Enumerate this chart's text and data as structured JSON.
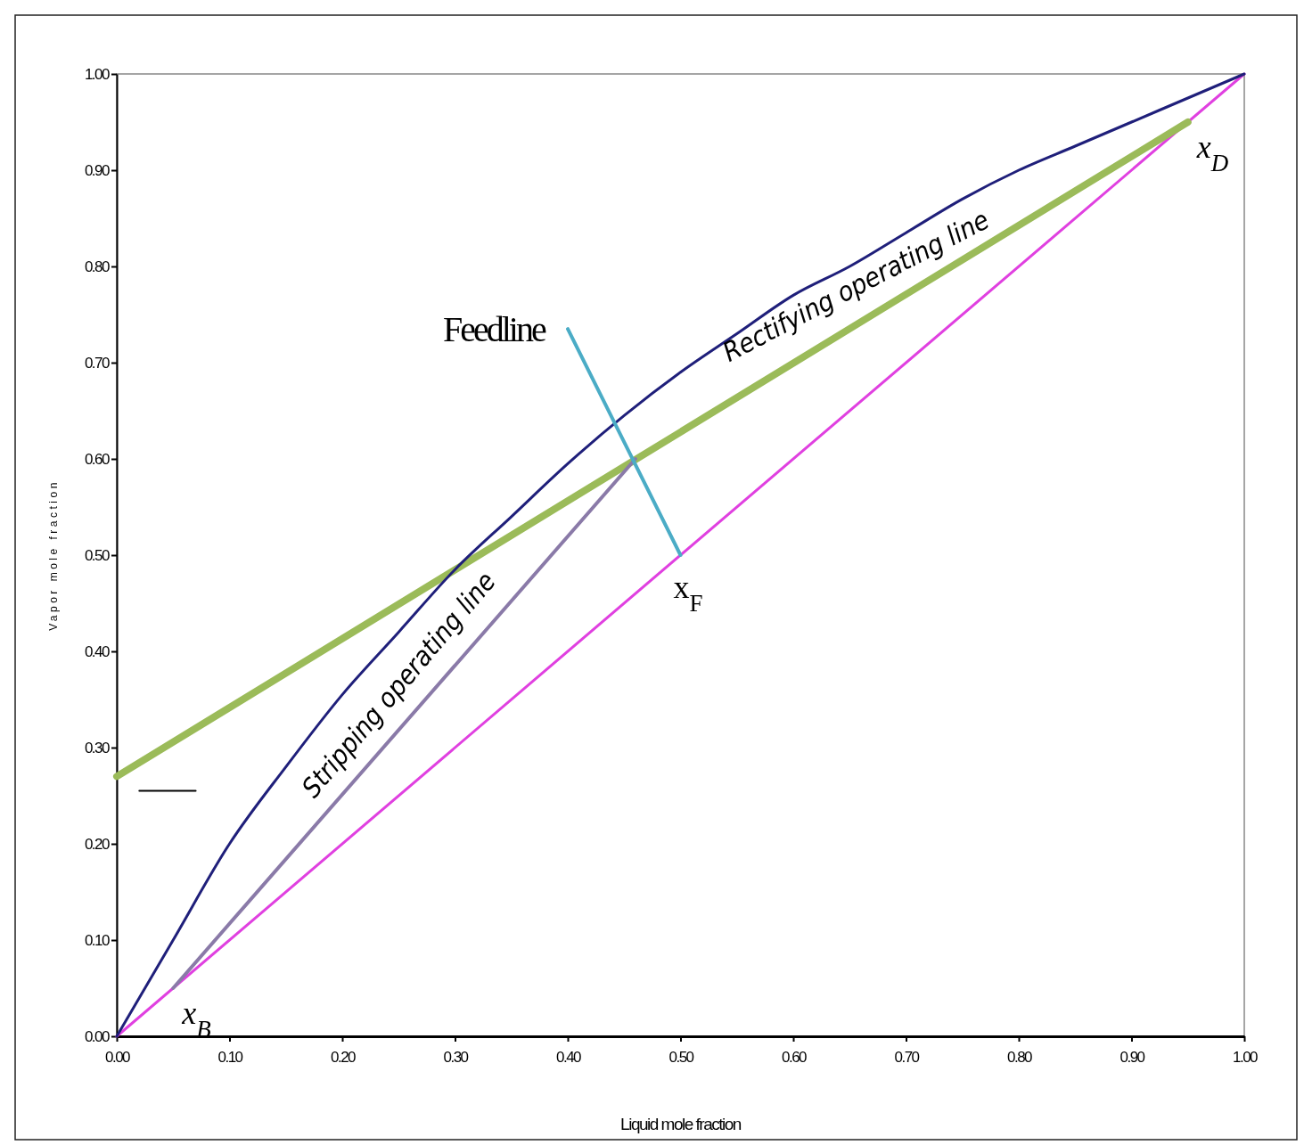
{
  "chart_data": {
    "type": "line",
    "xlabel": "Liquid mole fraction",
    "ylabel": "Vapor mole fraction",
    "xlim": [
      0,
      1
    ],
    "ylim": [
      0,
      1
    ],
    "xticks": [
      {
        "value": 0,
        "label": "0.00"
      },
      {
        "value": 0.1,
        "label": "0.10"
      },
      {
        "value": 0.2,
        "label": "0.20"
      },
      {
        "value": 0.3,
        "label": "0.30"
      },
      {
        "value": 0.4,
        "label": "0.40"
      },
      {
        "value": 0.5,
        "label": "0.50"
      },
      {
        "value": 0.6,
        "label": "0.60"
      },
      {
        "value": 0.7,
        "label": "0.70"
      },
      {
        "value": 0.8,
        "label": "0.80"
      },
      {
        "value": 0.9,
        "label": "0.90"
      },
      {
        "value": 1,
        "label": "1.00"
      }
    ],
    "yticks": [
      {
        "value": 0,
        "label": "0.00"
      },
      {
        "value": 0.1,
        "label": "0.10"
      },
      {
        "value": 0.2,
        "label": "0.20"
      },
      {
        "value": 0.3,
        "label": "0.30"
      },
      {
        "value": 0.4,
        "label": "0.40"
      },
      {
        "value": 0.5,
        "label": "0.50"
      },
      {
        "value": 0.6,
        "label": "0.60"
      },
      {
        "value": 0.7,
        "label": "0.70"
      },
      {
        "value": 0.8,
        "label": "0.80"
      },
      {
        "value": 0.9,
        "label": "0.90"
      },
      {
        "value": 1,
        "label": "1.00"
      }
    ],
    "grid": false,
    "series": [
      {
        "color": "#e040e0",
        "x": [
          0,
          1
        ],
        "values": [
          0,
          1
        ]
      },
      {
        "color": "#9bbb59",
        "x": [
          0,
          0.95
        ],
        "values": [
          0.27,
          0.95
        ]
      },
      {
        "color": "#1f1f7a",
        "x": [
          0,
          0.05,
          0.1,
          0.15,
          0.2,
          0.25,
          0.3,
          0.35,
          0.4,
          0.45,
          0.5,
          0.55,
          0.6,
          0.65,
          0.7,
          0.75,
          0.8,
          0.85,
          0.9,
          0.95,
          1
        ],
        "values": [
          0,
          0.1,
          0.2,
          0.28,
          0.355,
          0.42,
          0.485,
          0.54,
          0.595,
          0.645,
          0.69,
          0.73,
          0.77,
          0.8,
          0.835,
          0.87,
          0.9,
          0.925,
          0.95,
          0.975,
          1
        ]
      },
      {
        "color": "#8a7aa8",
        "x": [
          0.05,
          0.46
        ],
        "values": [
          0.05,
          0.6
        ]
      },
      {
        "color": "#4bacc6",
        "x": [
          0.4,
          0.5
        ],
        "values": [
          0.735,
          0.5
        ]
      },
      {
        "color": "#000000",
        "x": [
          0.02,
          0.07
        ],
        "values": [
          0.255,
          0.255
        ]
      }
    ],
    "annotations": [
      {
        "text": "Feedline",
        "x": 0.4,
        "y": 0.735
      },
      "Rectifying operating line",
      "Stripping operating line",
      {
        "text": "x$_{D}$",
        "x": 0.95,
        "y": 0.95
      },
      {
        "text": "x$_{F}$",
        "x": 0.5,
        "y": 0.5
      },
      {
        "text": "x$_{B}$",
        "x": 0.05,
        "y": 0.05
      }
    ]
  }
}
